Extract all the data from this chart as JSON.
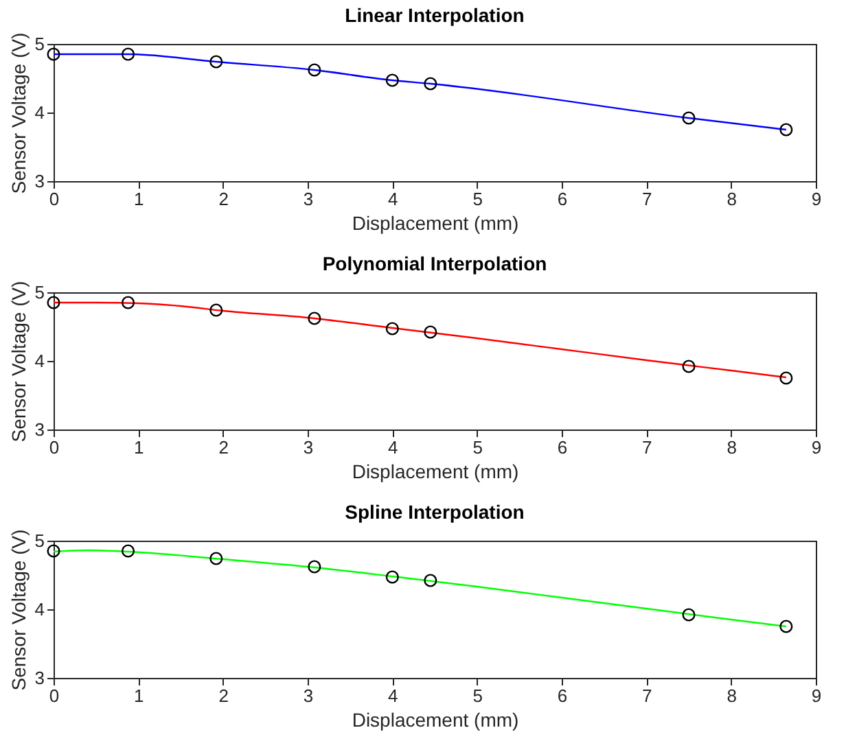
{
  "chart_data": [
    {
      "type": "line",
      "title": "Linear Interpolation",
      "xlabel": "Displacement (mm)",
      "ylabel": "Sensor Voltage (V)",
      "xlim": [
        0,
        9
      ],
      "xticks": [
        0,
        1,
        2,
        3,
        4,
        5,
        6,
        7,
        8,
        9
      ],
      "ylim": [
        3,
        5
      ],
      "yticks": [
        3,
        4,
        5
      ],
      "grid": false,
      "series": [
        {
          "color": "#0000ff",
          "x": [
            0,
            0.88,
            1.92,
            3.08,
            4.0,
            4.45,
            7.5,
            8.65
          ],
          "values": [
            4.85,
            4.85,
            4.74,
            4.62,
            4.47,
            4.42,
            3.92,
            3.75
          ]
        },
        {
          "type": "scatter",
          "marker": "circle",
          "color": "#000000",
          "x": [
            0,
            0.88,
            1.92,
            3.08,
            4.0,
            4.45,
            7.5,
            8.65
          ],
          "values": [
            4.85,
            4.85,
            4.74,
            4.62,
            4.47,
            4.42,
            3.92,
            3.75
          ]
        }
      ]
    },
    {
      "type": "line",
      "title": "Polynomial Interpolation",
      "xlabel": "Displacement (mm)",
      "ylabel": "Sensor Voltage (V)",
      "xlim": [
        0,
        9
      ],
      "xticks": [
        0,
        1,
        2,
        3,
        4,
        5,
        6,
        7,
        8,
        9
      ],
      "ylim": [
        3,
        5
      ],
      "yticks": [
        3,
        4,
        5
      ],
      "grid": false,
      "series": [
        {
          "color": "#ff0000",
          "x": [
            0,
            0.5,
            1,
            1.5,
            2,
            3,
            4,
            5,
            6,
            7,
            8,
            8.65
          ],
          "values": [
            4.85,
            4.85,
            4.84,
            4.8,
            4.73,
            4.63,
            4.48,
            4.33,
            4.17,
            4.01,
            3.86,
            3.76
          ]
        },
        {
          "type": "scatter",
          "marker": "circle",
          "color": "#000000",
          "x": [
            0,
            0.88,
            1.92,
            3.08,
            4.0,
            4.45,
            7.5,
            8.65
          ],
          "values": [
            4.85,
            4.85,
            4.74,
            4.62,
            4.47,
            4.42,
            3.92,
            3.75
          ]
        }
      ]
    },
    {
      "type": "line",
      "title": "Spline Interpolation",
      "xlabel": "Displacement (mm)",
      "ylabel": "Sensor Voltage (V)",
      "xlim": [
        0,
        9
      ],
      "xticks": [
        0,
        1,
        2,
        3,
        4,
        5,
        6,
        7,
        8,
        9
      ],
      "ylim": [
        3,
        5
      ],
      "yticks": [
        3,
        4,
        5
      ],
      "grid": false,
      "series": [
        {
          "color": "#00ff00",
          "x": [
            0,
            0.4,
            0.88,
            2,
            3,
            4,
            5,
            6,
            7,
            8,
            8.65
          ],
          "values": [
            4.84,
            4.86,
            4.84,
            4.73,
            4.62,
            4.48,
            4.33,
            4.17,
            4.01,
            3.85,
            3.75
          ]
        },
        {
          "type": "scatter",
          "marker": "circle",
          "color": "#000000",
          "x": [
            0,
            0.88,
            1.92,
            3.08,
            4.0,
            4.45,
            7.5,
            8.65
          ],
          "values": [
            4.85,
            4.85,
            4.74,
            4.62,
            4.47,
            4.42,
            3.92,
            3.75
          ]
        }
      ]
    }
  ]
}
